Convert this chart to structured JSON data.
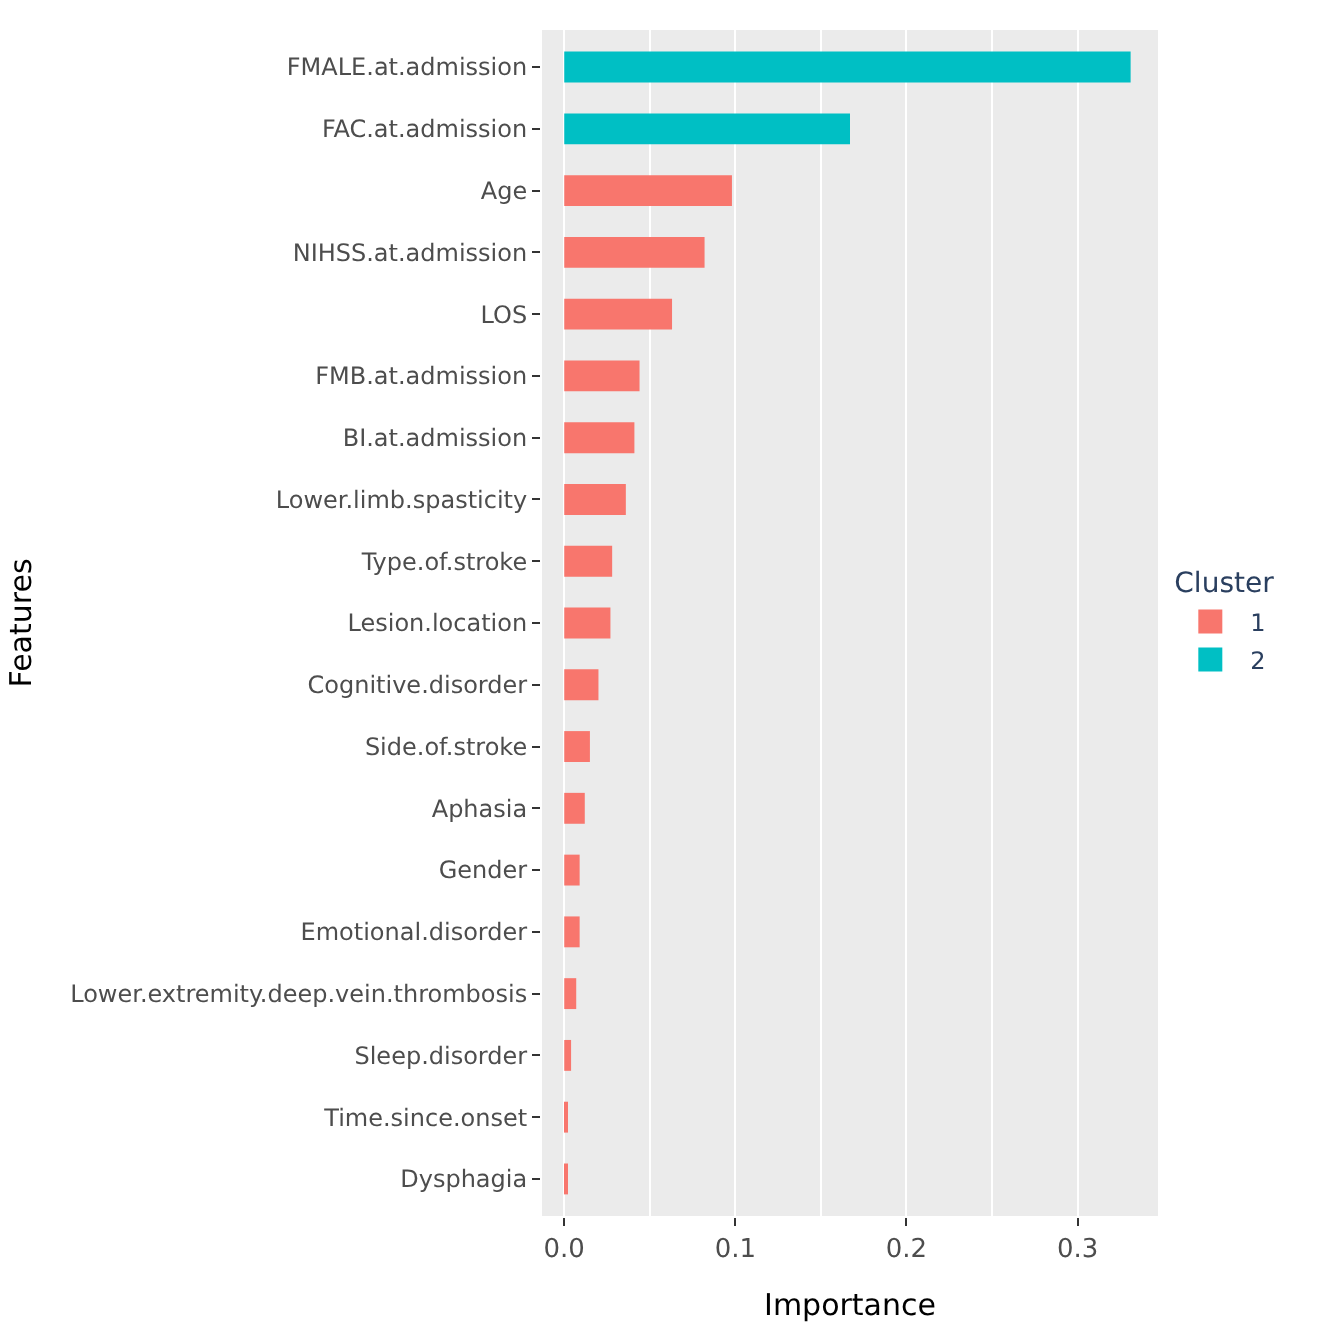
{
  "chart_data": {
    "type": "bar",
    "orientation": "horizontal",
    "stacked": true,
    "xlabel": "Importance",
    "ylabel": "Features",
    "legend_title": "Cluster",
    "legend": "right",
    "grid": "x",
    "categories": [
      "FMALE.at.admission",
      "FAC.at.admission",
      "Age",
      "NIHSS.at.admission",
      "LOS",
      "FMB.at.admission",
      "BI.at.admission",
      "Lower.limb.spasticity",
      "Type.of.stroke",
      "Lesion.location",
      "Cognitive.disorder",
      "Side.of.stroke",
      "Aphasia",
      "Gender",
      "Emotional.disorder",
      "Lower.extremity.deep.vein.thrombosis",
      "Sleep.disorder",
      "Time.since.onset",
      "Dysphagia"
    ],
    "series": [
      {
        "name": "1",
        "color": "#f8766d",
        "values": [
          null,
          null,
          0.098,
          0.082,
          0.063,
          0.044,
          0.041,
          0.036,
          0.028,
          0.027,
          0.02,
          0.015,
          0.012,
          0.009,
          0.009,
          0.007,
          0.004,
          0.002,
          0.002
        ]
      },
      {
        "name": "2",
        "color": "#00bfc4",
        "values": [
          0.331,
          0.167,
          null,
          null,
          null,
          null,
          null,
          null,
          null,
          null,
          null,
          null,
          null,
          null,
          null,
          null,
          null,
          null,
          null
        ]
      }
    ],
    "xlim": [
      -0.013,
      0.347
    ],
    "xticks": [
      {
        "value": 0,
        "label": "0.0"
      },
      {
        "value": 0.1,
        "label": "0.1"
      },
      {
        "value": 0.2,
        "label": "0.2"
      },
      {
        "value": 0.3,
        "label": "0.3"
      }
    ]
  }
}
